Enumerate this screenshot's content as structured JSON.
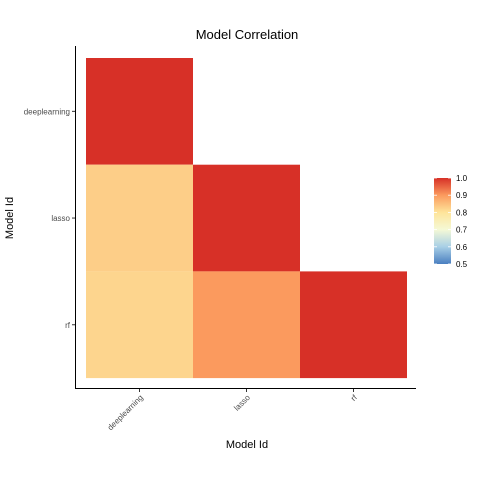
{
  "chart_data": {
    "type": "heatmap",
    "title": "Model Correlation",
    "xlabel": "Model Id",
    "ylabel": "Model Id",
    "x_categories": [
      "deeplearning",
      "lasso",
      "rf"
    ],
    "y_categories": [
      "deeplearning",
      "lasso",
      "rf"
    ],
    "cells": [
      {
        "x": "deeplearning",
        "y": "deeplearning",
        "value": 1.0
      },
      {
        "x": "deeplearning",
        "y": "lasso",
        "value": 0.83
      },
      {
        "x": "deeplearning",
        "y": "rf",
        "value": 0.82
      },
      {
        "x": "lasso",
        "y": "lasso",
        "value": 1.0
      },
      {
        "x": "lasso",
        "y": "rf",
        "value": 0.9
      },
      {
        "x": "rf",
        "y": "rf",
        "value": 1.0
      }
    ],
    "color_scale": {
      "min": 0.5,
      "max": 1.0,
      "ticks": [
        "0.5",
        "0.6",
        "0.7",
        "0.8",
        "0.9",
        "1.0"
      ],
      "stops": [
        {
          "value": 0.5,
          "color": "#4a7fc0"
        },
        {
          "value": 0.6,
          "color": "#a8cfe6"
        },
        {
          "value": 0.7,
          "color": "#f5f9d6"
        },
        {
          "value": 0.8,
          "color": "#fee49a"
        },
        {
          "value": 0.9,
          "color": "#fb9a5e"
        },
        {
          "value": 1.0,
          "color": "#d73027"
        }
      ]
    },
    "legend_position": "right",
    "grid": false
  }
}
